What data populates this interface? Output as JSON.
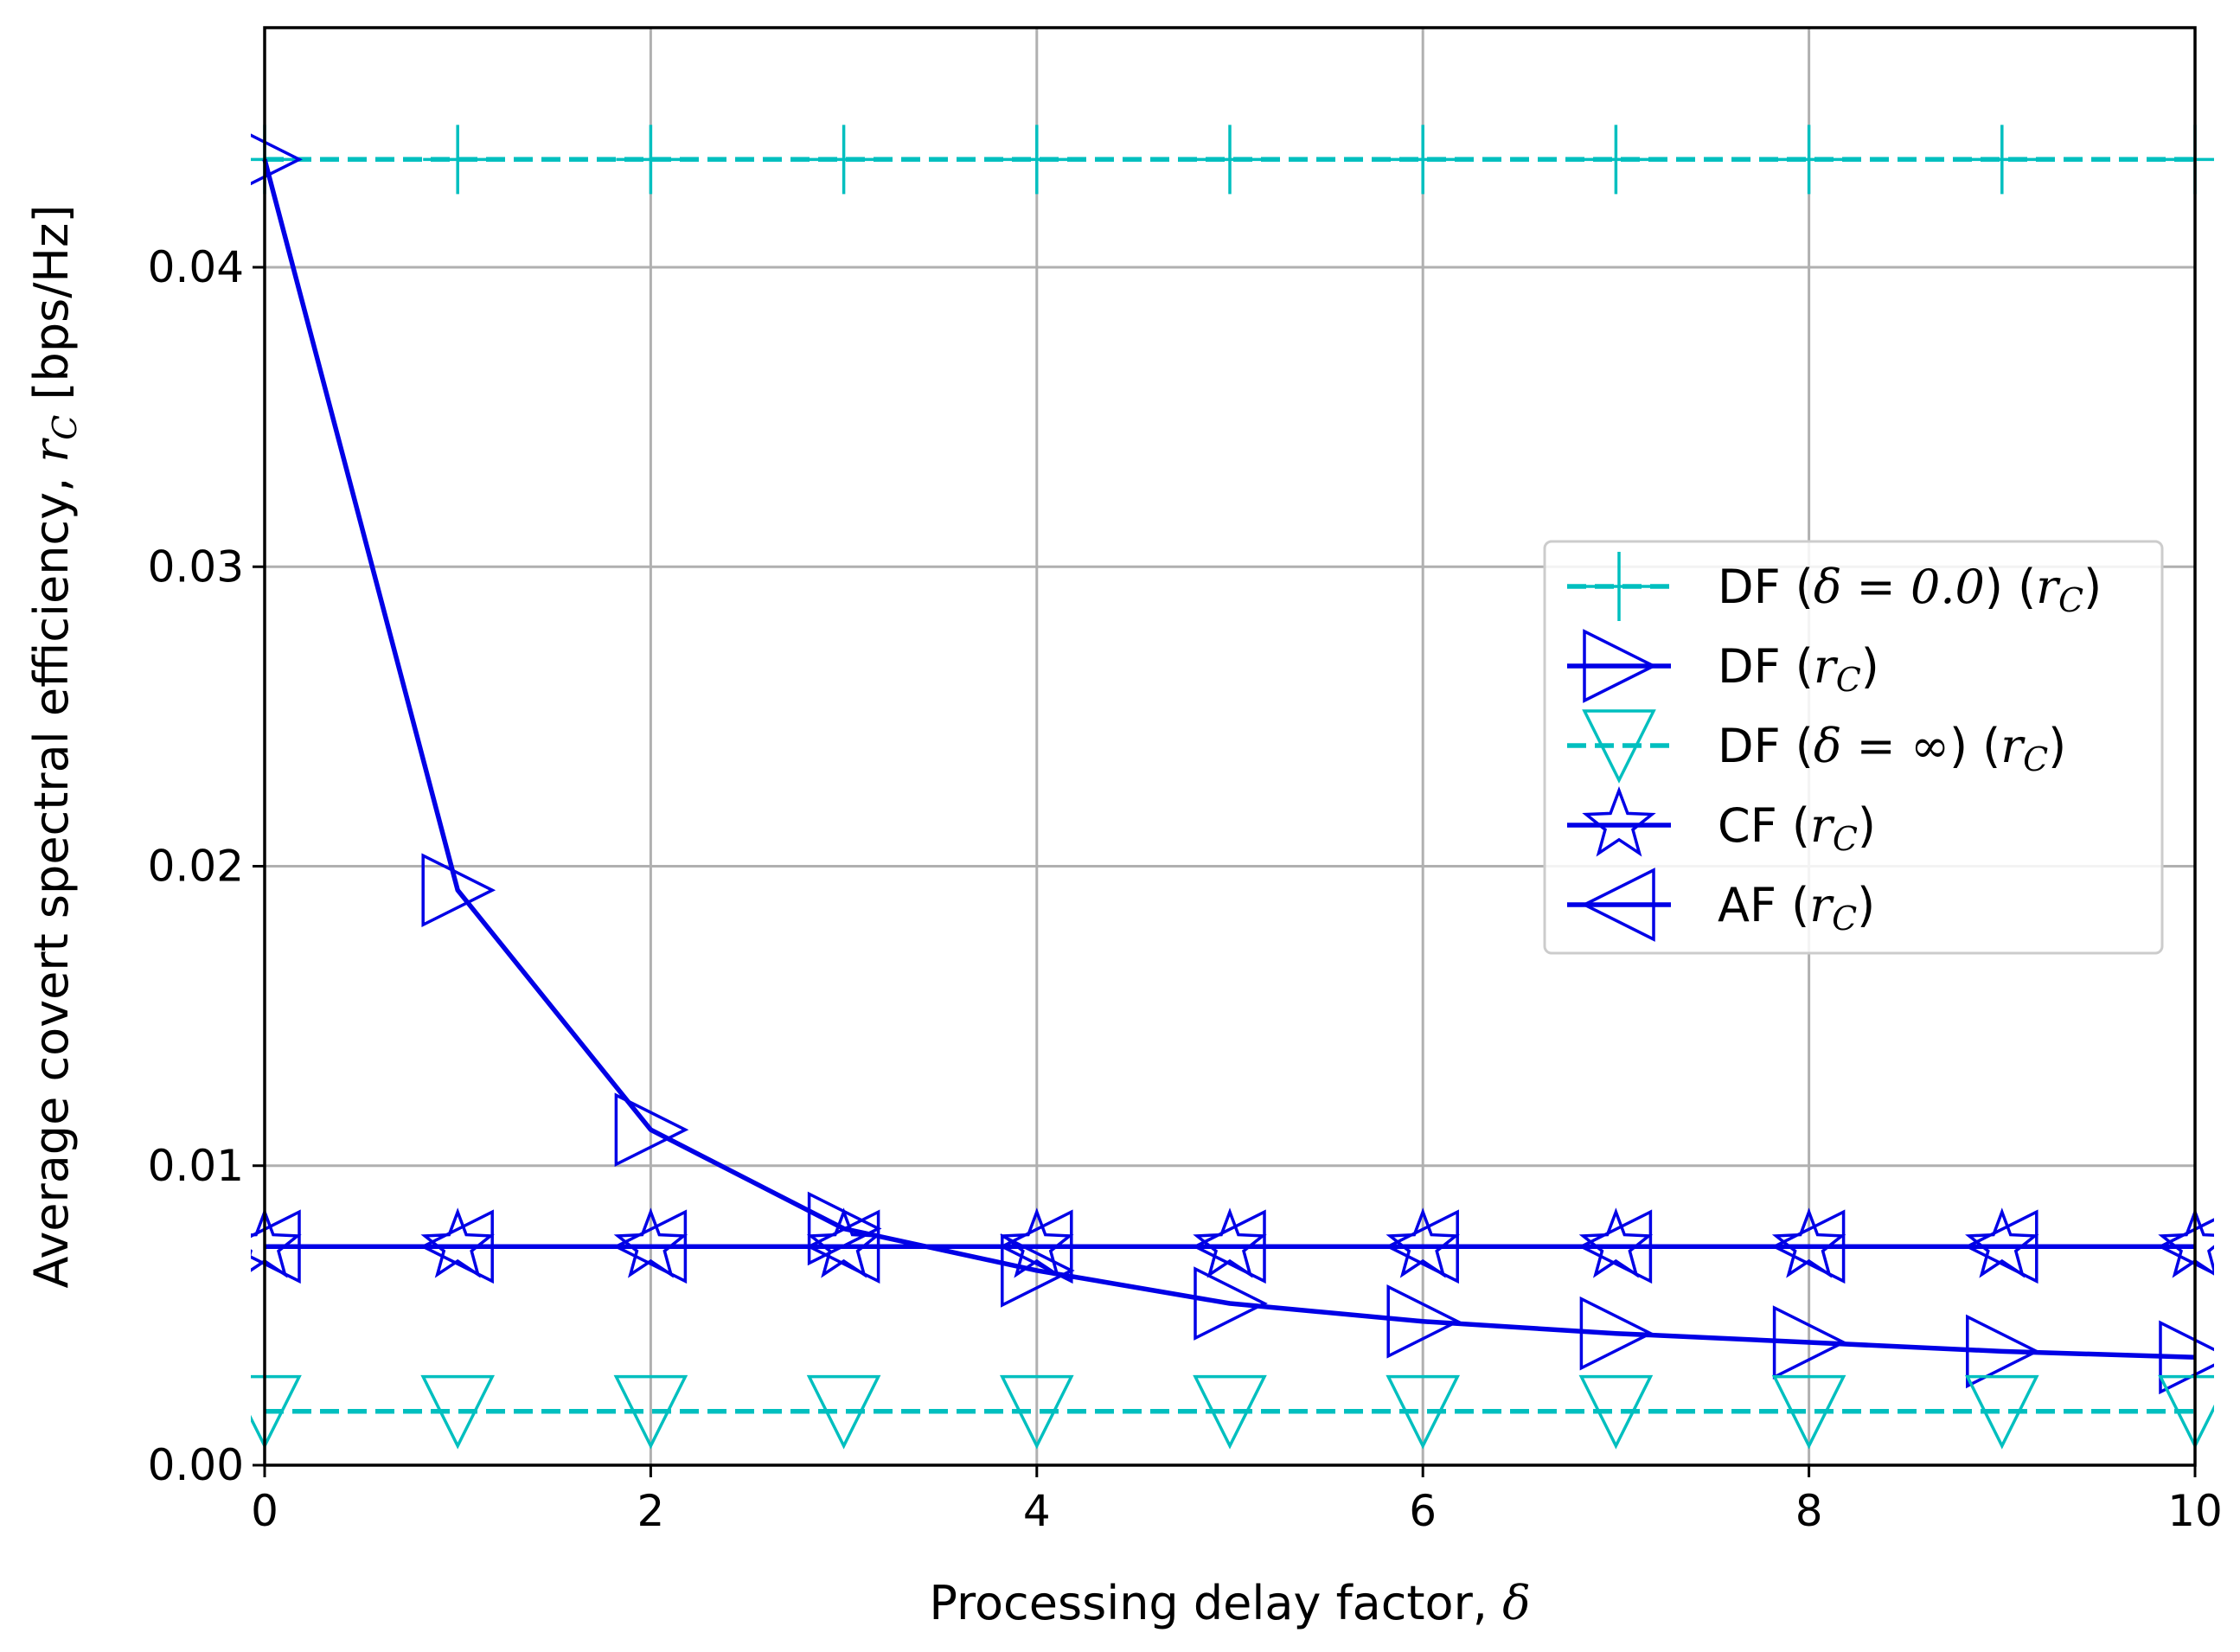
{
  "chart_data": {
    "type": "line",
    "title": "",
    "xlabel": "Processing delay factor, δ",
    "ylabel": "Average covert spectral efficiency, r_C [bps/Hz]",
    "xlim": [
      0,
      10
    ],
    "ylim": [
      0,
      0.048
    ],
    "grid": true,
    "legend_position": "center-right",
    "x_ticks": [
      0,
      2,
      4,
      6,
      8,
      10
    ],
    "x_tick_labels": [
      "0",
      "2",
      "4",
      "6",
      "8",
      "10"
    ],
    "y_ticks": [
      0.0,
      0.01,
      0.02,
      0.03,
      0.04
    ],
    "y_tick_labels": [
      "0.00",
      "0.01",
      "0.02",
      "0.03",
      "0.04"
    ],
    "x": [
      0,
      1,
      2,
      3,
      4,
      5,
      6,
      7,
      8,
      9,
      10
    ],
    "series": [
      {
        "name": "DF (δ = 0.0) (r_C)",
        "label_prefix": "DF (",
        "label_delta": "δ = 0.0",
        "label_mid": ") (",
        "label_r": "r",
        "label_sub": "C",
        "label_suffix": ")",
        "color": "#00bfbf",
        "linestyle": "dashed",
        "marker": "plus",
        "values": [
          0.0436,
          0.0436,
          0.0436,
          0.0436,
          0.0436,
          0.0436,
          0.0436,
          0.0436,
          0.0436,
          0.0436,
          0.0436
        ]
      },
      {
        "name": "DF (r_C)",
        "label_prefix": "DF (",
        "label_delta": "",
        "label_mid": "",
        "label_r": "r",
        "label_sub": "C",
        "label_suffix": ")",
        "color": "#0000e6",
        "linestyle": "solid",
        "marker": "triangle-right",
        "values": [
          0.0436,
          0.0192,
          0.0112,
          0.0079,
          0.0065,
          0.0054,
          0.0048,
          0.0044,
          0.0041,
          0.0038,
          0.0036
        ]
      },
      {
        "name": "DF (δ = ∞) (r_C)",
        "label_prefix": "DF (",
        "label_delta": "δ = ∞",
        "label_mid": ") (",
        "label_r": "r",
        "label_sub": "C",
        "label_suffix": ")",
        "color": "#00bfbf",
        "linestyle": "dashed",
        "marker": "triangle-down",
        "values": [
          0.0018,
          0.0018,
          0.0018,
          0.0018,
          0.0018,
          0.0018,
          0.0018,
          0.0018,
          0.0018,
          0.0018,
          0.0018
        ]
      },
      {
        "name": "CF (r_C)",
        "label_prefix": "CF (",
        "label_delta": "",
        "label_mid": "",
        "label_r": "r",
        "label_sub": "C",
        "label_suffix": ")",
        "color": "#0000e6",
        "linestyle": "solid",
        "marker": "star",
        "values": [
          0.0073,
          0.0073,
          0.0073,
          0.0073,
          0.0073,
          0.0073,
          0.0073,
          0.0073,
          0.0073,
          0.0073,
          0.0073
        ]
      },
      {
        "name": "AF (r_C)",
        "label_prefix": "AF (",
        "label_delta": "",
        "label_mid": "",
        "label_r": "r",
        "label_sub": "C",
        "label_suffix": ")",
        "color": "#0000e6",
        "linestyle": "solid",
        "marker": "triangle-left",
        "values": [
          0.0073,
          0.0073,
          0.0073,
          0.0073,
          0.0073,
          0.0073,
          0.0073,
          0.0073,
          0.0073,
          0.0073,
          0.0073
        ]
      }
    ]
  },
  "labels": {
    "xlabel_text": "Processing delay factor, ",
    "xlabel_symbol": "δ",
    "ylabel_text": "Average covert spectral efficiency, ",
    "ylabel_symbol": "r",
    "ylabel_sub": "C",
    "ylabel_unit": " [bps/Hz]"
  }
}
